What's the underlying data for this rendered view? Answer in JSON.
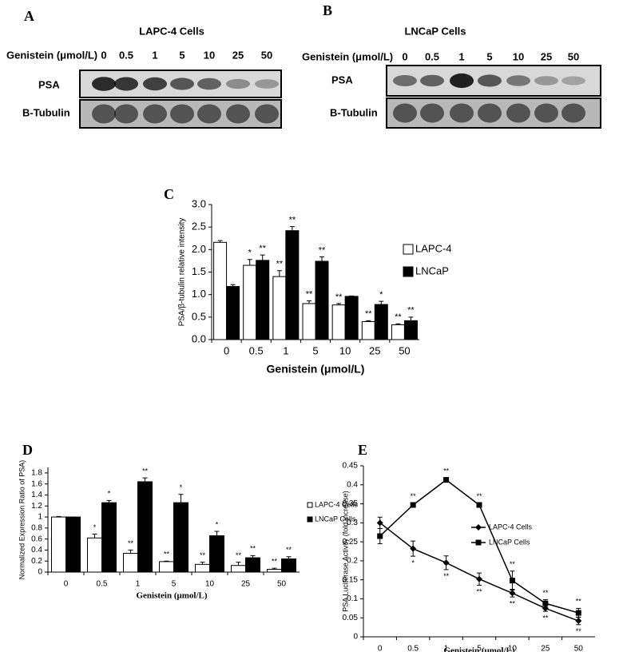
{
  "blots": [
    {
      "label": "A",
      "title": "LAPC-4 Cells",
      "treatment": "Genistein (μmol/L)",
      "lanes": [
        "0",
        "0.5",
        "1",
        "5",
        "10",
        "25",
        "50"
      ],
      "rows": [
        "PSA",
        "B-Tubulin"
      ]
    },
    {
      "label": "B",
      "title": "LNCaP Cells",
      "treatment": "Genistein (μmol/L)",
      "lanes": [
        "0",
        "0.5",
        "1",
        "5",
        "10",
        "25",
        "50"
      ],
      "rows": [
        "PSA",
        "B-Tubulin"
      ]
    }
  ],
  "chart_data": [
    {
      "type": "bar",
      "label": "C",
      "xlabel": "Genistein (μmol/L)",
      "ylabel": "PSA/β-tubulin relative intensity",
      "categories": [
        "0",
        "0.5",
        "1",
        "5",
        "10",
        "25",
        "50"
      ],
      "ylim": [
        0,
        3
      ],
      "yticks": [
        {
          "value": 0,
          "label": "0.0"
        },
        {
          "value": 0.5,
          "label": "0.5"
        },
        {
          "value": 1,
          "label": "1.0"
        },
        {
          "value": 1.5,
          "label": "1.5"
        },
        {
          "value": 2,
          "label": "2.0"
        },
        {
          "value": 2.5,
          "label": "2.5"
        },
        {
          "value": 3,
          "label": "3.0"
        }
      ],
      "series": [
        {
          "name": "LAPC-4",
          "color": "#ffffff",
          "values": [
            2.16,
            1.65,
            1.4,
            0.8,
            0.77,
            0.4,
            0.33
          ],
          "errors": [
            0.04,
            0.13,
            0.13,
            0.06,
            0.03,
            0.02,
            0.02
          ],
          "annotations": [
            null,
            "*",
            "**",
            "**",
            "**",
            "**",
            "**"
          ]
        },
        {
          "name": "LNCaP",
          "color": "#000000",
          "values": [
            1.18,
            1.76,
            2.42,
            1.74,
            0.96,
            0.78,
            0.42
          ],
          "errors": [
            0.04,
            0.12,
            0.09,
            0.1,
            0.01,
            0.07,
            0.08
          ],
          "annotations": [
            null,
            "**",
            "**",
            "**",
            null,
            "*",
            "**"
          ]
        }
      ]
    },
    {
      "type": "bar",
      "label": "D",
      "xlabel": "Genistein (μmol/L)",
      "ylabel": "Normalized Expression Ratio of PSA)",
      "categories": [
        "0",
        "0.5",
        "1",
        "5",
        "10",
        "25",
        "50"
      ],
      "ylim": [
        0,
        1.9
      ],
      "yticks": [
        0,
        0.2,
        0.4,
        0.6,
        0.8,
        1,
        1.2,
        1.4,
        1.6,
        1.8
      ],
      "series": [
        {
          "name": "LAPC-4 Cells",
          "color": "#ffffff",
          "values": [
            1,
            0.62,
            0.34,
            0.19,
            0.14,
            0.12,
            0.05
          ],
          "errors": [
            0.01,
            0.07,
            0.06,
            0.01,
            0.04,
            0.06,
            0.02
          ],
          "annotations": [
            null,
            "*",
            "**",
            "**",
            "**",
            "**",
            "**"
          ]
        },
        {
          "name": "LNCaP Cells",
          "color": "#000000",
          "values": [
            1,
            1.26,
            1.64,
            1.26,
            0.66,
            0.26,
            0.24
          ],
          "errors": [
            0,
            0.04,
            0.07,
            0.15,
            0.08,
            0.04,
            0.04
          ],
          "annotations": [
            null,
            "*",
            "**",
            "*",
            "*",
            "**",
            "**"
          ]
        }
      ]
    },
    {
      "type": "line",
      "label": "E",
      "xlabel": "Genistein (μmol/L)",
      "ylabel": "PSA Luciferase Activity (fold increase)",
      "categories": [
        "0",
        "0.5",
        "1",
        "5",
        "10",
        "25",
        "50"
      ],
      "ylim": [
        0,
        0.45
      ],
      "yticks": [
        0,
        0.05,
        0.1,
        0.15,
        0.2,
        0.25,
        0.3,
        0.35,
        0.4,
        0.45
      ],
      "series": [
        {
          "name": "LAPC-4 Cells",
          "color": "#000000",
          "marker": "diamond",
          "values": [
            0.3,
            0.232,
            0.195,
            0.152,
            0.115,
            0.075,
            0.042
          ],
          "errors": [
            0.015,
            0.02,
            0.018,
            0.016,
            0.01,
            0.008,
            0.01
          ],
          "annotations": [
            null,
            "*",
            "**",
            "**",
            "**",
            "**",
            "**"
          ]
        },
        {
          "name": "LNCaP Cells",
          "color": "#000000",
          "marker": "square",
          "values": [
            0.265,
            0.347,
            0.413,
            0.347,
            0.148,
            0.088,
            0.063
          ],
          "errors": [
            0.02,
            0.005,
            0.005,
            0.005,
            0.025,
            0.01,
            0.012
          ],
          "annotations": [
            null,
            "**",
            "**",
            "**",
            "**",
            "**",
            "**"
          ]
        }
      ]
    }
  ]
}
